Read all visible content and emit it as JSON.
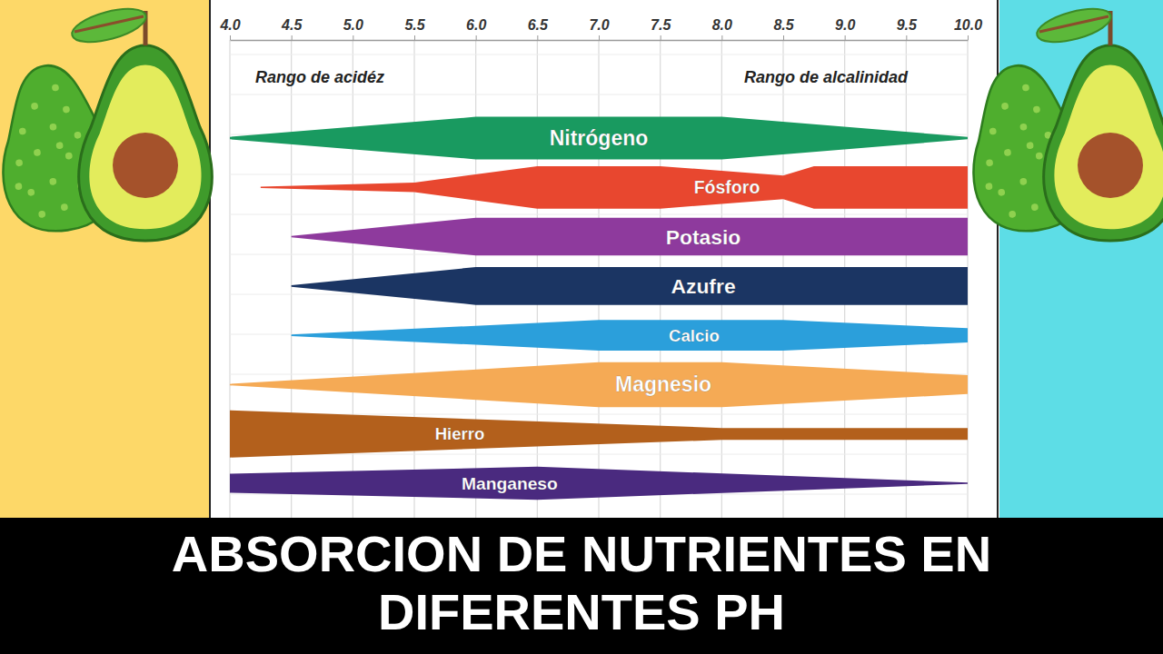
{
  "chart_data": {
    "type": "area",
    "title": "ABSORCION DE NUTRIENTES EN DIFERENTES PH",
    "annotations": [
      "Rango de acidéz",
      "Rango de alcalinidad"
    ],
    "xlim": [
      4,
      10
    ],
    "xticks": [
      {
        "value": 4,
        "label": "4.0"
      },
      {
        "value": 4.5,
        "label": "4.5"
      },
      {
        "value": 5,
        "label": "5.0"
      },
      {
        "value": 5.5,
        "label": "5.5"
      },
      {
        "value": 6,
        "label": "6.0"
      },
      {
        "value": 6.5,
        "label": "6.5"
      },
      {
        "value": 7,
        "label": "7.0"
      },
      {
        "value": 7.5,
        "label": "7.5"
      },
      {
        "value": 8,
        "label": "8.0"
      },
      {
        "value": 8.5,
        "label": "8.5"
      },
      {
        "value": 9,
        "label": "9.0"
      },
      {
        "value": 9.5,
        "label": "9.5"
      },
      {
        "value": 10,
        "label": "10.0"
      }
    ],
    "ylim": [
      0,
      10
    ],
    "tick_labels": "x",
    "grid": true,
    "series": [
      {
        "name": "Nitrógeno",
        "color": "#199a60",
        "x": [
          4,
          6,
          8,
          10
        ],
        "values": [
          0.5,
          9,
          9,
          0.5
        ]
      },
      {
        "name": "Fósforo",
        "color": "#e8472f",
        "x": [
          4.25,
          5.5,
          6.5,
          7.5,
          8.5,
          8.75,
          10
        ],
        "values": [
          0.3,
          2,
          9,
          9,
          5,
          9,
          9
        ]
      },
      {
        "name": "Potasio",
        "color": "#8e3a9d",
        "x": [
          4.5,
          6,
          10
        ],
        "values": [
          0.3,
          8,
          8
        ]
      },
      {
        "name": "Azufre",
        "color": "#1b3563",
        "x": [
          4.5,
          6,
          10
        ],
        "values": [
          0.3,
          8,
          8
        ]
      },
      {
        "name": "Calcio",
        "color": "#2b9fdb",
        "x": [
          4.5,
          7,
          8.5,
          10
        ],
        "values": [
          0.3,
          6.5,
          6.5,
          3
        ]
      },
      {
        "name": "Magnesio",
        "color": "#f5aa55",
        "x": [
          4,
          7,
          8,
          10
        ],
        "values": [
          0.3,
          9.5,
          9.5,
          4
        ]
      },
      {
        "name": "Hierro",
        "color": "#b3601c",
        "x": [
          4,
          8,
          10
        ],
        "values": [
          10,
          2.5,
          2.5
        ]
      },
      {
        "name": "Manganeso",
        "color": "#4a2a7f",
        "x": [
          4,
          6.5,
          10
        ],
        "values": [
          4,
          7,
          0.3
        ]
      }
    ]
  }
}
